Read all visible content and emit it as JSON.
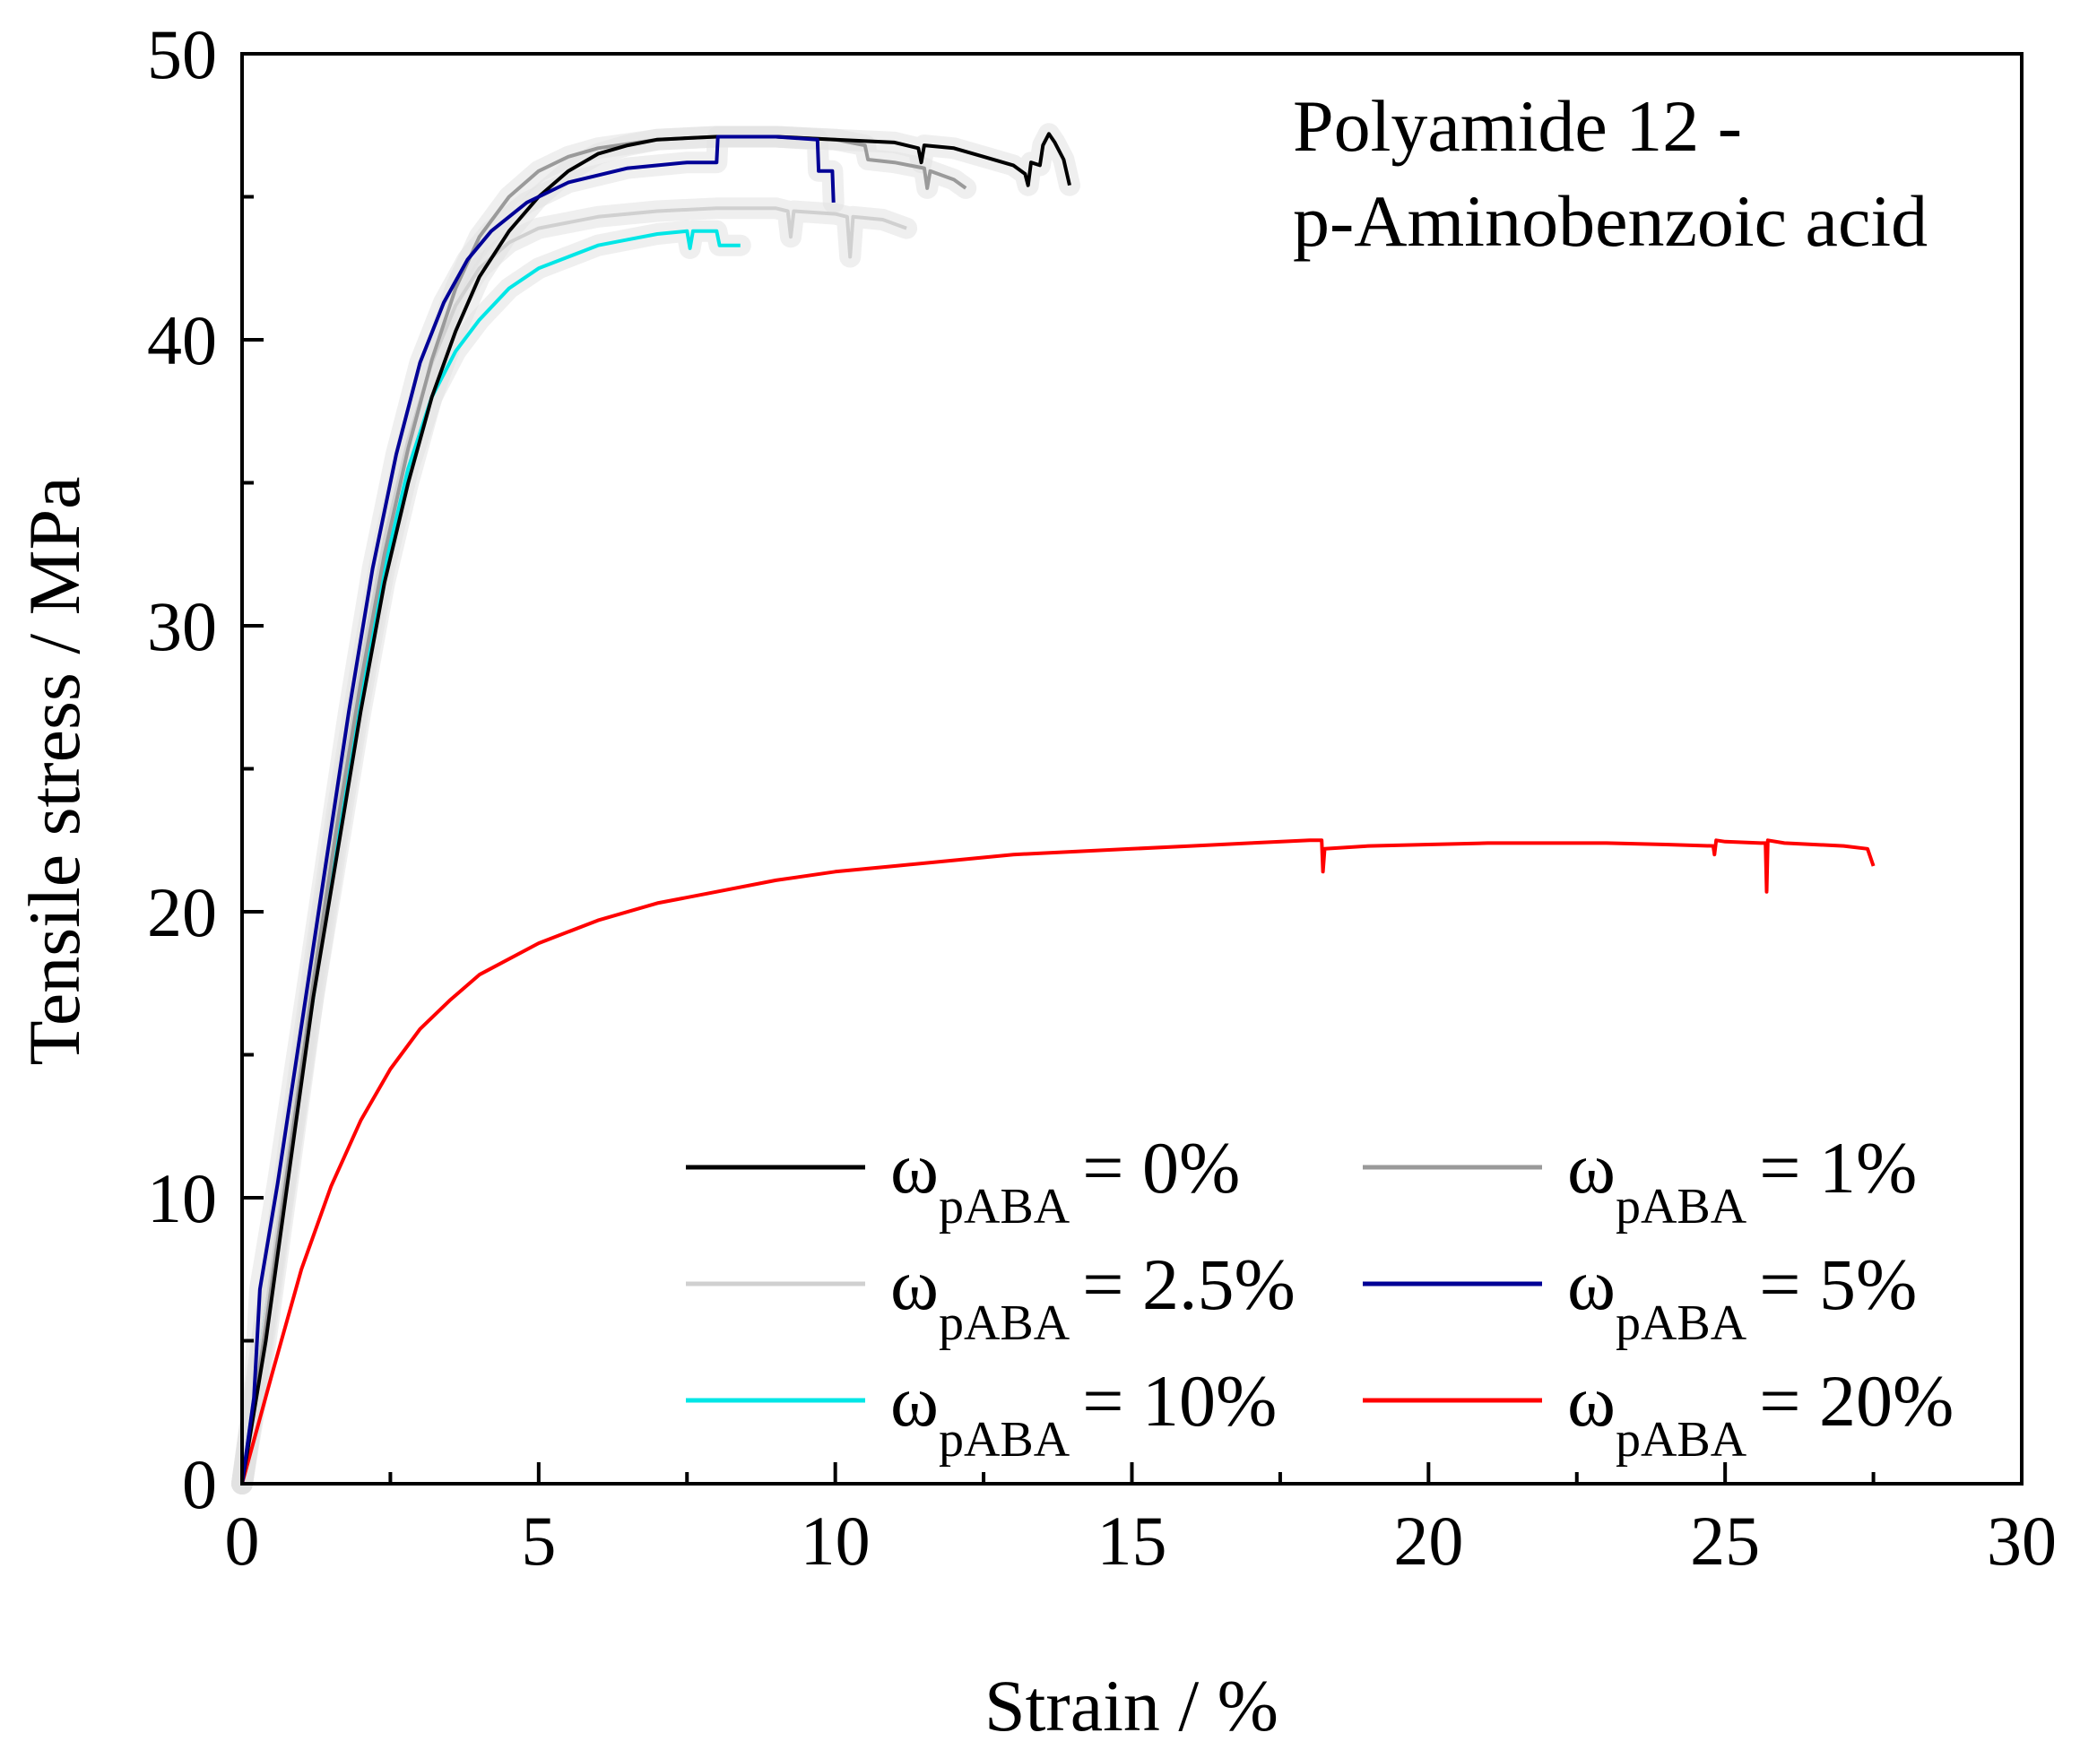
{
  "chart_data": {
    "type": "line",
    "title": "",
    "annotation": [
      "Polyamide 12 -",
      "p-Aminobenzoic acid"
    ],
    "xlabel": "Strain / %",
    "ylabel": "Tensile stress / MPa",
    "xlim": [
      0,
      30
    ],
    "ylim": [
      0,
      50
    ],
    "xticks": [
      0,
      5,
      10,
      15,
      20,
      25,
      30
    ],
    "yticks": [
      0,
      10,
      20,
      30,
      40,
      50
    ],
    "grid": false,
    "legend_position": "bottom-right",
    "legend_symbol": "ω",
    "legend_subscript": "pABA",
    "series": [
      {
        "name": "0%",
        "label": "= 0%",
        "color": "#000000",
        "points": [
          [
            0,
            0
          ],
          [
            0.4,
            5
          ],
          [
            0.8,
            11
          ],
          [
            1.2,
            17
          ],
          [
            1.6,
            22
          ],
          [
            2.0,
            27
          ],
          [
            2.4,
            31.5
          ],
          [
            2.8,
            35
          ],
          [
            3.2,
            38
          ],
          [
            3.6,
            40.3
          ],
          [
            4,
            42.2
          ],
          [
            4.5,
            43.8
          ],
          [
            5,
            45
          ],
          [
            5.5,
            45.9
          ],
          [
            6,
            46.5
          ],
          [
            6.5,
            46.8
          ],
          [
            7,
            47
          ],
          [
            8,
            47.1
          ],
          [
            9,
            47.1
          ],
          [
            10,
            47.0
          ],
          [
            11,
            46.9
          ],
          [
            11.4,
            46.7
          ],
          [
            11.45,
            46.2
          ],
          [
            11.5,
            46.8
          ],
          [
            12,
            46.7
          ],
          [
            12.5,
            46.4
          ],
          [
            13,
            46.1
          ],
          [
            13.2,
            45.8
          ],
          [
            13.25,
            45.4
          ],
          [
            13.3,
            46.2
          ],
          [
            13.45,
            46.1
          ],
          [
            13.5,
            46.8
          ],
          [
            13.6,
            47.2
          ],
          [
            13.7,
            46.9
          ],
          [
            13.85,
            46.3
          ],
          [
            13.95,
            45.4
          ]
        ]
      },
      {
        "name": "1%",
        "label": "= 1%",
        "color": "#9a9a9a",
        "points": [
          [
            0,
            0
          ],
          [
            0.4,
            5.5
          ],
          [
            0.8,
            11.5
          ],
          [
            1.2,
            17.5
          ],
          [
            1.6,
            23
          ],
          [
            2,
            28
          ],
          [
            2.4,
            32.5
          ],
          [
            2.8,
            36.2
          ],
          [
            3.2,
            39.3
          ],
          [
            3.6,
            41.8
          ],
          [
            4,
            43.6
          ],
          [
            4.5,
            45
          ],
          [
            5,
            45.9
          ],
          [
            5.5,
            46.4
          ],
          [
            6,
            46.7
          ],
          [
            7,
            47
          ],
          [
            8,
            47.1
          ],
          [
            9,
            47.1
          ],
          [
            10,
            47
          ],
          [
            10.5,
            46.8
          ],
          [
            10.55,
            46.3
          ],
          [
            11,
            46.2
          ],
          [
            11.5,
            46
          ],
          [
            11.55,
            45.3
          ],
          [
            11.6,
            45.9
          ],
          [
            12,
            45.6
          ],
          [
            12.2,
            45.3
          ]
        ]
      },
      {
        "name": "2.5%",
        "label": "= 2.5%",
        "color": "#d0d0d0",
        "points": [
          [
            0,
            0
          ],
          [
            0.4,
            6
          ],
          [
            0.8,
            12
          ],
          [
            1.2,
            18
          ],
          [
            1.6,
            23.5
          ],
          [
            2,
            28.5
          ],
          [
            2.4,
            33
          ],
          [
            2.8,
            36.5
          ],
          [
            3.2,
            39.2
          ],
          [
            3.6,
            41.2
          ],
          [
            4,
            42.5
          ],
          [
            4.5,
            43.4
          ],
          [
            5,
            43.9
          ],
          [
            6,
            44.3
          ],
          [
            7,
            44.5
          ],
          [
            8,
            44.6
          ],
          [
            9,
            44.6
          ],
          [
            9.2,
            44.5
          ],
          [
            9.25,
            43.6
          ],
          [
            9.3,
            44.5
          ],
          [
            10,
            44.4
          ],
          [
            10.2,
            44.3
          ],
          [
            10.25,
            42.9
          ],
          [
            10.3,
            44.3
          ],
          [
            10.8,
            44.2
          ],
          [
            11.2,
            43.9
          ]
        ]
      },
      {
        "name": "5%",
        "label": "= 5%",
        "color": "#000096",
        "points": [
          [
            0,
            0
          ],
          [
            0.2,
            3
          ],
          [
            0.3,
            6.8
          ],
          [
            0.6,
            10.5
          ],
          [
            1,
            16
          ],
          [
            1.4,
            21.5
          ],
          [
            1.8,
            27
          ],
          [
            2.2,
            32
          ],
          [
            2.6,
            36
          ],
          [
            3,
            39.2
          ],
          [
            3.4,
            41.3
          ],
          [
            3.8,
            42.8
          ],
          [
            4.2,
            43.8
          ],
          [
            4.8,
            44.8
          ],
          [
            5.5,
            45.5
          ],
          [
            6.5,
            46
          ],
          [
            7.5,
            46.2
          ],
          [
            8,
            46.2
          ],
          [
            8.02,
            47.1
          ],
          [
            9,
            47.1
          ],
          [
            9.7,
            47
          ],
          [
            9.72,
            45.9
          ],
          [
            9.95,
            45.9
          ],
          [
            9.97,
            44.8
          ]
        ]
      },
      {
        "name": "10%",
        "label": "= 10%",
        "color": "#00e6e6",
        "points": [
          [
            0,
            0
          ],
          [
            0.4,
            6
          ],
          [
            0.8,
            11.5
          ],
          [
            1.2,
            17
          ],
          [
            1.6,
            22.5
          ],
          [
            2,
            27.5
          ],
          [
            2.4,
            32
          ],
          [
            2.8,
            35.5
          ],
          [
            3.2,
            38
          ],
          [
            3.6,
            39.6
          ],
          [
            4,
            40.7
          ],
          [
            4.5,
            41.8
          ],
          [
            5,
            42.5
          ],
          [
            5.5,
            42.9
          ],
          [
            6,
            43.3
          ],
          [
            6.5,
            43.5
          ],
          [
            7,
            43.7
          ],
          [
            7.5,
            43.8
          ],
          [
            7.55,
            43.2
          ],
          [
            7.6,
            43.8
          ],
          [
            8,
            43.8
          ],
          [
            8.05,
            43.3
          ],
          [
            8.4,
            43.3
          ]
        ]
      },
      {
        "name": "20%",
        "label": "= 20%",
        "color": "#ff0000",
        "points": [
          [
            0,
            0
          ],
          [
            0.5,
            3.8
          ],
          [
            1,
            7.5
          ],
          [
            1.5,
            10.4
          ],
          [
            2,
            12.7
          ],
          [
            2.5,
            14.5
          ],
          [
            3,
            15.9
          ],
          [
            3.5,
            16.9
          ],
          [
            4,
            17.8
          ],
          [
            5,
            18.9
          ],
          [
            6,
            19.7
          ],
          [
            7,
            20.3
          ],
          [
            8,
            20.7
          ],
          [
            9,
            21.1
          ],
          [
            10,
            21.4
          ],
          [
            11,
            21.6
          ],
          [
            12,
            21.8
          ],
          [
            13,
            22
          ],
          [
            14,
            22.1
          ],
          [
            15,
            22.2
          ],
          [
            16,
            22.3
          ],
          [
            17,
            22.4
          ],
          [
            18,
            22.5
          ],
          [
            18.2,
            22.5
          ],
          [
            18.22,
            21.4
          ],
          [
            18.25,
            22.2
          ],
          [
            19,
            22.3
          ],
          [
            20,
            22.35
          ],
          [
            21,
            22.4
          ],
          [
            22,
            22.4
          ],
          [
            23,
            22.4
          ],
          [
            24,
            22.35
          ],
          [
            24.8,
            22.3
          ],
          [
            24.82,
            22.0
          ],
          [
            24.85,
            22.5
          ],
          [
            25,
            22.45
          ],
          [
            25.6,
            22.4
          ],
          [
            25.68,
            22.4
          ],
          [
            25.7,
            20.7
          ],
          [
            25.72,
            22.5
          ],
          [
            26,
            22.4
          ],
          [
            27,
            22.3
          ],
          [
            27.4,
            22.2
          ],
          [
            27.5,
            21.6
          ]
        ]
      }
    ]
  }
}
